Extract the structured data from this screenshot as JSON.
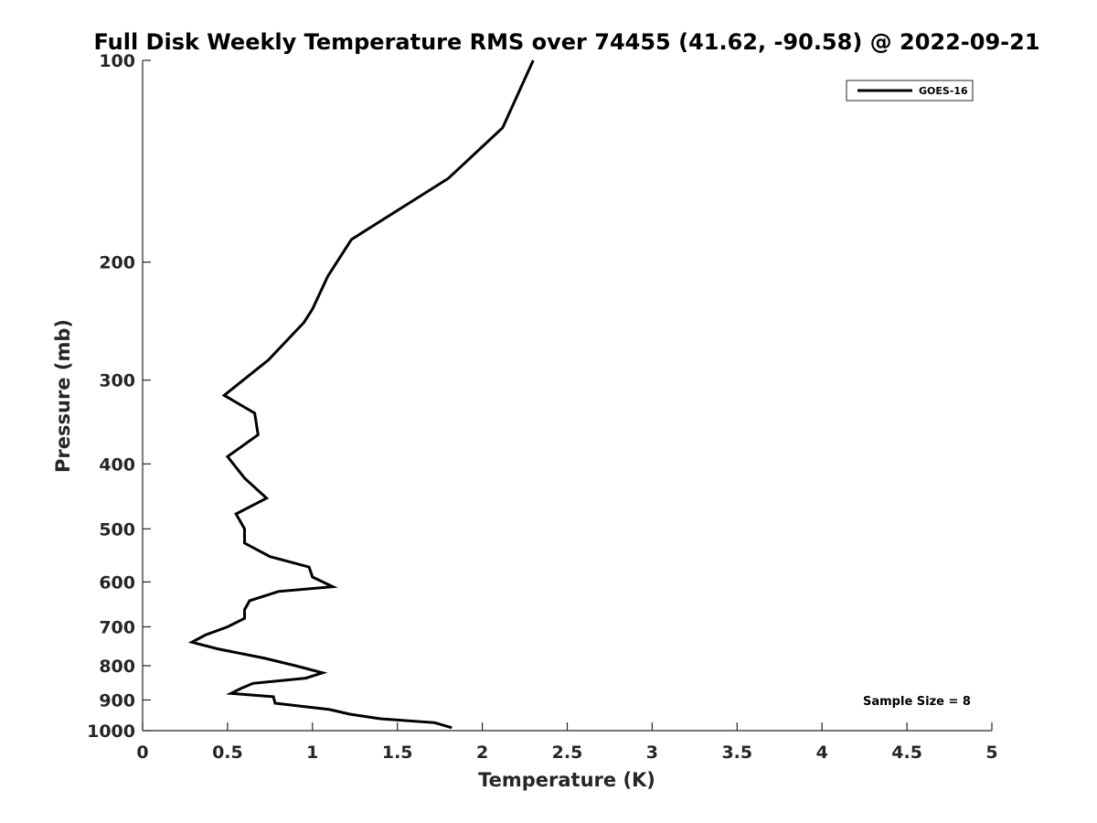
{
  "chart_data": {
    "type": "line",
    "title": "Full Disk Weekly Temperature RMS over 74455 (41.62, -90.58) @ 2022-09-21",
    "xlabel": "Temperature (K)",
    "ylabel": "Pressure (mb)",
    "xlim": [
      0,
      5
    ],
    "ylim": [
      100,
      1000
    ],
    "y_scale": "log",
    "y_reversed": true,
    "x_ticks": [
      "0",
      "0.5",
      "1",
      "1.5",
      "2",
      "2.5",
      "3",
      "3.5",
      "4",
      "4.5",
      "5"
    ],
    "y_ticks": [
      "100",
      "200",
      "300",
      "400",
      "500",
      "600",
      "700",
      "800",
      "900",
      "1000"
    ],
    "grid": false,
    "legend_position": "top-right",
    "annotation": "Sample Size = 8",
    "series": [
      {
        "name": "GOES-16",
        "color": "#000000",
        "points": [
          [
            2.3,
            100
          ],
          [
            2.12,
            126
          ],
          [
            1.8,
            150
          ],
          [
            1.23,
            185
          ],
          [
            1.09,
            210
          ],
          [
            1.0,
            235
          ],
          [
            0.95,
            246
          ],
          [
            0.74,
            280
          ],
          [
            0.48,
            316
          ],
          [
            0.66,
            336
          ],
          [
            0.68,
            362
          ],
          [
            0.5,
            390
          ],
          [
            0.6,
            420
          ],
          [
            0.73,
            450
          ],
          [
            0.55,
            475
          ],
          [
            0.6,
            500
          ],
          [
            0.6,
            525
          ],
          [
            0.75,
            550
          ],
          [
            0.98,
            570
          ],
          [
            1.0,
            590
          ],
          [
            1.12,
            610
          ],
          [
            0.8,
            620
          ],
          [
            0.63,
            640
          ],
          [
            0.6,
            660
          ],
          [
            0.6,
            680
          ],
          [
            0.5,
            700
          ],
          [
            0.37,
            720
          ],
          [
            0.29,
            738
          ],
          [
            0.44,
            755
          ],
          [
            0.72,
            780
          ],
          [
            0.9,
            800
          ],
          [
            1.06,
            820
          ],
          [
            0.96,
            835
          ],
          [
            0.65,
            850
          ],
          [
            0.58,
            865
          ],
          [
            0.52,
            880
          ],
          [
            0.77,
            890
          ],
          [
            0.78,
            910
          ],
          [
            1.1,
            930
          ],
          [
            1.22,
            945
          ],
          [
            1.4,
            960
          ],
          [
            1.72,
            973
          ],
          [
            1.82,
            990
          ]
        ]
      }
    ]
  }
}
